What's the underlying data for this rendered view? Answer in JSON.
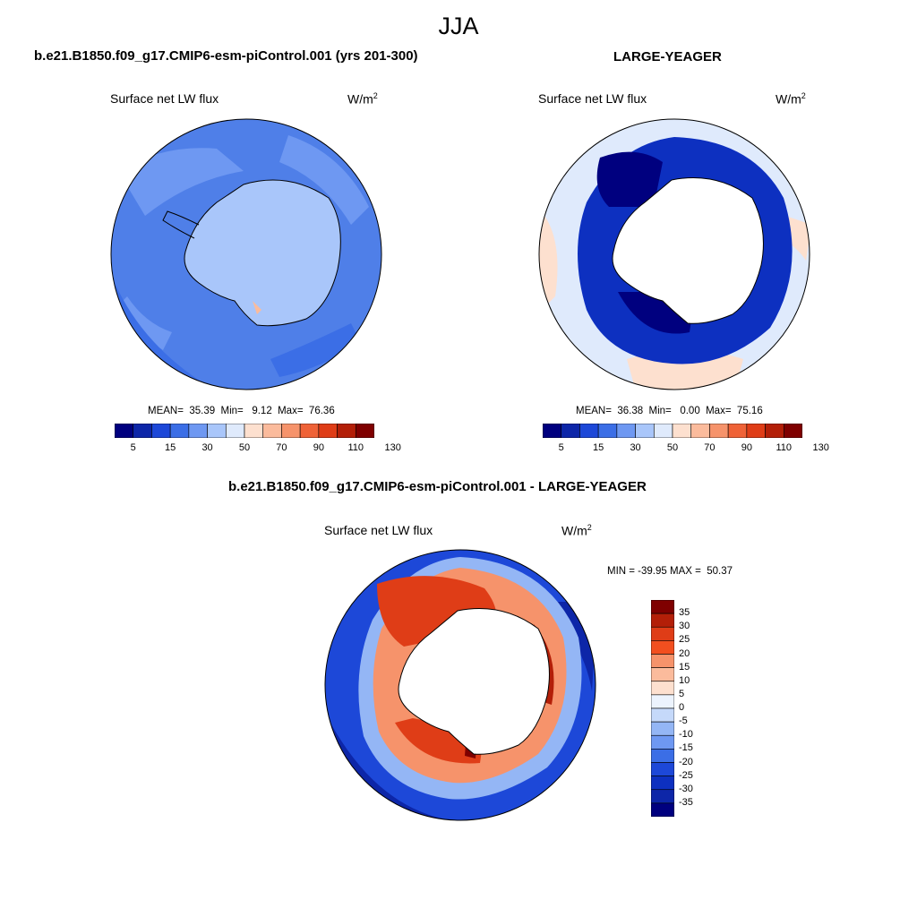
{
  "title": "JJA",
  "panels": [
    {
      "id": "control",
      "case_title": "b.e21.B1850.f09_g17.CMIP6-esm-piControl.001 (yrs 201-300)",
      "variable": "Surface net LW flux",
      "units": "W/m",
      "units_sup": "2",
      "stats": "MEAN=  35.39  Min=   9.12  Max=  76.36"
    },
    {
      "id": "obs",
      "case_title": "LARGE-YEAGER",
      "variable": "Surface net LW flux",
      "units": "W/m",
      "units_sup": "2",
      "stats": "MEAN=  36.38  Min=   0.00  Max=  75.16"
    },
    {
      "id": "diff",
      "case_title": "b.e21.B1850.f09_g17.CMIP6-esm-piControl.001 - LARGE-YEAGER",
      "variable": "Surface net LW flux",
      "units": "W/m",
      "units_sup": "2",
      "stats": "MIN = -39.95 MAX =  50.37"
    }
  ],
  "colorbars": {
    "field": {
      "labels": [
        "5",
        "15",
        "30",
        "50",
        "70",
        "90",
        "110",
        "130"
      ],
      "colors": [
        "#00007f",
        "#0d26a8",
        "#1d48d8",
        "#3b6ee6",
        "#6e98f2",
        "#a9c6fa",
        "#dfeafc",
        "#fde0cf",
        "#fbbb9c",
        "#f6936b",
        "#ef6237",
        "#df3d17",
        "#b31f08",
        "#7f0000"
      ]
    },
    "diff": {
      "labels": [
        "35",
        "30",
        "25",
        "20",
        "15",
        "10",
        "5",
        "0",
        "-5",
        "-10",
        "-15",
        "-20",
        "-25",
        "-30",
        "-35"
      ],
      "colors": [
        "#7f0000",
        "#b31f08",
        "#df3d17",
        "#f24f1f",
        "#f6936b",
        "#fbbb9c",
        "#fde0cf",
        "#ecf3fd",
        "#c5d9fa",
        "#94b6f5",
        "#6e98f2",
        "#3b6ee6",
        "#1d48d8",
        "#0d30c0",
        "#0d26a8",
        "#00007f"
      ]
    }
  }
}
